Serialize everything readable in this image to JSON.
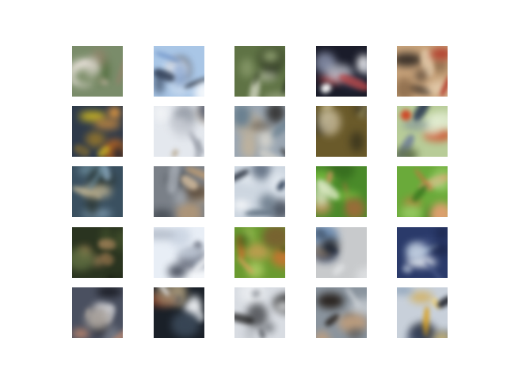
{
  "grid": {
    "rows": 5,
    "cols": 5
  },
  "tiles": [
    {
      "bg": "#7a8c6a",
      "colors": [
        "#c9b8a8",
        "#4f6b3a",
        "#d7d2c8",
        "#9a7f6a",
        "#e8e2da"
      ],
      "icon": "generated-sample"
    },
    {
      "bg": "#a9c6e6",
      "colors": [
        "#1e2430",
        "#ffffff",
        "#6f93c8",
        "#2e3b52",
        "#dfe9f5"
      ],
      "icon": "generated-sample"
    },
    {
      "bg": "#5f7345",
      "colors": [
        "#2c3326",
        "#8fa070",
        "#c2c8b0",
        "#3e4a2c",
        "#a7b08f"
      ],
      "icon": "generated-sample"
    },
    {
      "bg": "#1a1c2a",
      "colors": [
        "#ffffff",
        "#d9dde8",
        "#3a3e55",
        "#c44a4a",
        "#9aa3bf"
      ],
      "icon": "generated-sample"
    },
    {
      "bg": "#c7a27a",
      "colors": [
        "#2a2420",
        "#8a6a4a",
        "#e6cfb0",
        "#b23a2a",
        "#5c4a3a"
      ],
      "icon": "generated-sample"
    },
    {
      "bg": "#2e3a4a",
      "colors": [
        "#d8c020",
        "#f0a040",
        "#1a2030",
        "#8a7030",
        "#c46a20"
      ],
      "icon": "generated-sample"
    },
    {
      "bg": "#e4e8ee",
      "colors": [
        "#9aa0aa",
        "#c8ccd4",
        "#5a6070",
        "#b8a890",
        "#f2f4f6"
      ],
      "icon": "generated-sample"
    },
    {
      "bg": "#9aa6b2",
      "colors": [
        "#3a3a3a",
        "#c4b49a",
        "#6a8090",
        "#e8e2d4",
        "#54483a"
      ],
      "icon": "generated-sample"
    },
    {
      "bg": "#6a5a2a",
      "colors": [
        "#c8b888",
        "#3a3420",
        "#e8dcc0",
        "#8a8050",
        "#2a2818"
      ],
      "icon": "generated-sample"
    },
    {
      "bg": "#b8cc98",
      "colors": [
        "#3a4a5a",
        "#e4eed4",
        "#7a8a9a",
        "#d04020",
        "#5a6a3a"
      ],
      "icon": "generated-sample"
    },
    {
      "bg": "#3a5060",
      "colors": [
        "#a0c0d8",
        "#2a3430",
        "#d8c8a0",
        "#6a8a9a",
        "#1a2420"
      ],
      "icon": "generated-sample"
    },
    {
      "bg": "#7a8088",
      "colors": [
        "#c8a070",
        "#4a5058",
        "#a8aeb6",
        "#d8c0a0",
        "#5a4a3a"
      ],
      "icon": "generated-sample"
    },
    {
      "bg": "#cdd6e0",
      "colors": [
        "#1a2230",
        "#e8eef4",
        "#6a7a8a",
        "#3a4a60",
        "#ffffff"
      ],
      "icon": "generated-sample"
    },
    {
      "bg": "#4a8a2a",
      "colors": [
        "#d09060",
        "#7ac040",
        "#a06a3a",
        "#e8f0d0",
        "#2a5a18"
      ],
      "icon": "generated-sample"
    },
    {
      "bg": "#6aaa3a",
      "colors": [
        "#c07840",
        "#94c860",
        "#e0a070",
        "#3a7a20",
        "#b8d890"
      ],
      "icon": "generated-sample"
    },
    {
      "bg": "#2a3420",
      "colors": [
        "#c8986a",
        "#4a5a30",
        "#1a2014",
        "#a07a50",
        "#6a7a48"
      ],
      "icon": "generated-sample"
    },
    {
      "bg": "#e8eef6",
      "colors": [
        "#5a6070",
        "#c8d2e0",
        "#9aa4b4",
        "#f6f8fb",
        "#2a3040"
      ],
      "icon": "generated-sample"
    },
    {
      "bg": "#6a9a30",
      "colors": [
        "#d07030",
        "#a8c860",
        "#3a5a18",
        "#e8a060",
        "#7a5a30"
      ],
      "icon": "generated-sample"
    },
    {
      "bg": "#c8cacc",
      "colors": [
        "#2a3a5a",
        "#6a8ab0",
        "#1a1c20",
        "#e4e6e8",
        "#8a7a6a"
      ],
      "icon": "generated-sample"
    },
    {
      "bg": "#2a3a6a",
      "colors": [
        "#8aa0c0",
        "#1a2448",
        "#c8d4e4",
        "#4a5a8a",
        "#e8ecf2"
      ],
      "icon": "generated-sample"
    },
    {
      "bg": "#4a5060",
      "colors": [
        "#f0f0f2",
        "#1a1c24",
        "#b8b0a8",
        "#d09070",
        "#8a8e98"
      ],
      "icon": "generated-sample"
    },
    {
      "bg": "#1a2028",
      "colors": [
        "#e8ecf0",
        "#b0a080",
        "#3a4858",
        "#f4f6f8",
        "#a04a2a"
      ],
      "icon": "generated-sample"
    },
    {
      "bg": "#d8dce2",
      "colors": [
        "#1a1a1a",
        "#f2f4f6",
        "#6a6e74",
        "#a8acb2",
        "#3a3c40"
      ],
      "icon": "generated-sample"
    },
    {
      "bg": "#8a949e",
      "colors": [
        "#2a2420",
        "#c0a080",
        "#5a626a",
        "#d8dce0",
        "#4a3a2a"
      ],
      "icon": "generated-sample"
    },
    {
      "bg": "#c8d0da",
      "colors": [
        "#d8a020",
        "#2a3a5a",
        "#f0d070",
        "#1a1c24",
        "#8aa0b8"
      ],
      "icon": "generated-sample"
    }
  ]
}
